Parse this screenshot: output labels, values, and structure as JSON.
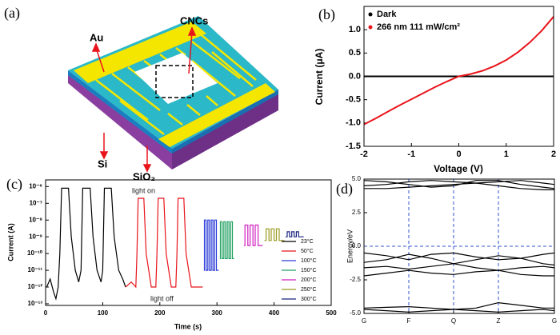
{
  "diagram": {
    "panel_label": "(a)",
    "labels": [
      "Au",
      "CNCs",
      "Si",
      "SiO₂"
    ]
  },
  "chart_data": [
    {
      "type": "line",
      "panel_label": "(b)",
      "xlabel": "Voltage (V)",
      "ylabel": "Current (μA)",
      "xlim": [
        -2,
        2
      ],
      "xticks": [
        -2,
        -1,
        0,
        1,
        2
      ],
      "ylim": [
        -1.5,
        1.5
      ],
      "yticks": [
        {
          "value": -1.5,
          "label": "-1.5"
        },
        {
          "value": -1.0,
          "label": "-1.0"
        },
        {
          "value": -0.5,
          "label": "-0.5"
        },
        {
          "value": 0.0,
          "label": "0.0"
        },
        {
          "value": 0.5,
          "label": "0.5"
        },
        {
          "value": 1.0,
          "label": "1.0"
        }
      ],
      "legend": "upper left",
      "legend_marker": "dot",
      "x": [
        -2,
        -1.75,
        -1.5,
        -1.25,
        -1,
        -0.75,
        -0.5,
        -0.25,
        0,
        0.25,
        0.5,
        0.75,
        1,
        1.25,
        1.5,
        1.75,
        2
      ],
      "series": [
        {
          "name": "Dark",
          "color": "#000000",
          "values": [
            0,
            0,
            0,
            0,
            0,
            0,
            0,
            0,
            0,
            0,
            0,
            0,
            0,
            0,
            0,
            0,
            0
          ]
        },
        {
          "name": "266 nm 111 mW/cm²",
          "color": "#e8141b",
          "values": [
            -1.03,
            -0.9,
            -0.76,
            -0.62,
            -0.49,
            -0.36,
            -0.23,
            -0.11,
            0.0,
            0.05,
            0.12,
            0.22,
            0.35,
            0.52,
            0.73,
            0.98,
            1.28
          ]
        }
      ]
    },
    {
      "type": "line",
      "panel_label": "(c)",
      "xlabel": "Time (s)",
      "ylabel": "Current (A)",
      "log_y": true,
      "xlim": [
        0,
        500
      ],
      "xticks": [
        0,
        100,
        200,
        300,
        400,
        500
      ],
      "ylim": [
        8e-14,
        2.5e-06
      ],
      "yticks": [
        {
          "value": 1e-13,
          "label": "10⁻¹³"
        },
        {
          "value": 1e-12,
          "label": "10⁻¹²"
        },
        {
          "value": 1e-11,
          "label": "10⁻¹¹"
        },
        {
          "value": 1e-10,
          "label": "10⁻¹⁰"
        },
        {
          "value": 1e-09,
          "label": "10⁻⁹"
        },
        {
          "value": 1e-08,
          "label": "10⁻⁸"
        },
        {
          "value": 1e-07,
          "label": "10⁻⁷"
        },
        {
          "value": 1e-06,
          "label": "10⁻⁶"
        }
      ],
      "legend": "lower right",
      "legend_marker": "line",
      "annotations": [
        "light on",
        "light off"
      ],
      "series": [
        {
          "name": "23°C",
          "color": "#000000",
          "x": [
            2,
            8,
            14,
            18,
            22,
            25,
            28,
            40,
            45,
            52,
            58,
            62,
            65,
            78,
            83,
            90,
            97,
            100,
            103,
            115,
            120,
            128,
            135,
            140
          ],
          "values": [
            1e-12,
            3e-12,
            5e-13,
            2e-13,
            1e-12,
            1e-10,
            8e-07,
            8e-07,
            1e-09,
            1e-11,
            2e-12,
            1e-11,
            8e-07,
            8e-07,
            1e-09,
            1e-11,
            2e-12,
            1e-11,
            8e-07,
            8e-07,
            1e-09,
            1e-11,
            3e-12,
            1e-12
          ]
        },
        {
          "name": "50°C",
          "color": "#e8141b",
          "x": [
            140,
            150,
            158,
            160,
            162,
            172,
            176,
            185,
            193,
            195,
            197,
            207,
            211,
            220,
            228,
            230,
            232,
            242,
            246,
            255,
            265,
            275
          ],
          "values": [
            1e-12,
            2e-12,
            1e-12,
            1e-10,
            2e-07,
            2e-07,
            1e-10,
            1e-12,
            1e-12,
            1e-10,
            2e-07,
            2e-07,
            1e-10,
            1e-12,
            1e-12,
            1e-10,
            2e-07,
            2e-07,
            1e-10,
            1e-12,
            1e-12,
            1e-12
          ]
        },
        {
          "name": "100°C",
          "color": "#2a3bd6",
          "x": [
            277,
            278,
            278,
            281,
            281,
            284,
            284,
            287,
            287,
            290,
            290,
            293,
            293,
            296,
            296,
            299,
            299,
            303
          ],
          "values": [
            1e-11,
            1e-11,
            1e-08,
            1e-08,
            1e-11,
            1e-11,
            1e-08,
            1e-08,
            1e-11,
            1e-11,
            1e-08,
            1e-08,
            1e-11,
            1e-11,
            1e-08,
            1e-08,
            1e-11,
            1e-11
          ]
        },
        {
          "name": "150°C",
          "color": "#20a060",
          "x": [
            305,
            306,
            306,
            309,
            309,
            312,
            312,
            315,
            315,
            318,
            318,
            321,
            321,
            324,
            324,
            327,
            327,
            330
          ],
          "values": [
            5e-11,
            5e-11,
            8e-09,
            8e-09,
            5e-11,
            5e-11,
            8e-09,
            8e-09,
            5e-11,
            5e-11,
            8e-09,
            8e-09,
            5e-11,
            5e-11,
            8e-09,
            8e-09,
            5e-11,
            5e-11
          ]
        },
        {
          "name": "200°C",
          "color": "#d020c0",
          "x": [
            347,
            349,
            349,
            354,
            354,
            358,
            358,
            363,
            363,
            367,
            367,
            372,
            372,
            380
          ],
          "values": [
            3e-10,
            3e-10,
            5e-09,
            5e-09,
            3e-10,
            3e-10,
            5e-09,
            5e-09,
            3e-10,
            3e-10,
            5e-09,
            5e-09,
            3e-10,
            3e-10
          ]
        },
        {
          "name": "250°C",
          "color": "#9a9a20",
          "x": [
            383,
            386,
            386,
            391,
            391,
            395,
            395,
            400,
            400,
            404,
            404,
            409,
            409,
            418
          ],
          "values": [
            6e-10,
            6e-10,
            3e-09,
            3e-09,
            6e-10,
            6e-10,
            3e-09,
            3e-09,
            6e-10,
            6e-10,
            3e-09,
            3e-09,
            6e-10,
            6e-10
          ]
        },
        {
          "name": "300°C",
          "color": "#1a237e",
          "x": [
            420,
            423,
            423,
            427,
            427,
            431,
            431,
            435,
            435,
            439,
            439,
            443,
            443,
            452
          ],
          "values": [
            1e-09,
            1e-09,
            2e-09,
            2e-09,
            1e-09,
            1e-09,
            2e-09,
            2e-09,
            1e-09,
            1e-09,
            2e-09,
            2e-09,
            1e-09,
            1e-09
          ]
        }
      ]
    },
    {
      "type": "line",
      "panel_label": "(d)",
      "ylabel": "Energy/eV",
      "xlim": [
        0,
        4.25
      ],
      "xticks": [
        {
          "value": 0,
          "label": "G"
        },
        {
          "value": 1,
          "label": "F"
        },
        {
          "value": 2,
          "label": "Q"
        },
        {
          "value": 3,
          "label": "Z"
        },
        {
          "value": 4.25,
          "label": "G"
        }
      ],
      "ylim": [
        -5,
        5
      ],
      "yticks": [
        {
          "value": -5,
          "label": "-5.0"
        },
        {
          "value": -2.5,
          "label": "-2.5"
        },
        {
          "value": 0,
          "label": "0.0"
        },
        {
          "value": 2.5,
          "label": "2.5"
        },
        {
          "value": 5,
          "label": "5.0"
        }
      ],
      "guides": true,
      "guide_color": "#3355cc",
      "x": [
        0,
        0.5,
        1,
        1.5,
        2,
        2.5,
        3,
        3.5,
        4,
        4.25
      ],
      "series": [
        {
          "color": "#000000",
          "values": [
            4.3,
            4.3,
            4.4,
            4.5,
            4.6,
            4.7,
            4.5,
            4.3,
            4.2,
            4.2
          ]
        },
        {
          "color": "#000000",
          "values": [
            4.5,
            4.6,
            4.8,
            4.9,
            4.8,
            4.7,
            4.8,
            4.9,
            4.7,
            4.6
          ]
        },
        {
          "color": "#000000",
          "values": [
            4.9,
            4.8,
            4.6,
            4.4,
            4.5,
            4.9,
            4.9,
            4.6,
            4.4,
            4.3
          ]
        },
        {
          "color": "#000000",
          "values": [
            -0.5,
            -0.7,
            -1.0,
            -0.6,
            -0.5,
            -0.8,
            -1.0,
            -0.9,
            -0.6,
            -0.5
          ]
        },
        {
          "color": "#000000",
          "values": [
            -1.2,
            -1.0,
            -0.6,
            -0.9,
            -1.3,
            -1.0,
            -0.7,
            -0.9,
            -1.3,
            -1.4
          ]
        },
        {
          "color": "#000000",
          "values": [
            -1.6,
            -1.5,
            -1.7,
            -1.5,
            -1.3,
            -1.6,
            -1.8,
            -1.6,
            -1.5,
            -1.6
          ]
        },
        {
          "color": "#000000",
          "values": [
            -2.2,
            -2.0,
            -1.8,
            -2.0,
            -2.1,
            -1.9,
            -1.8,
            -2.1,
            -2.2,
            -2.2
          ]
        },
        {
          "color": "#000000",
          "values": [
            -4.6,
            -4.55,
            -4.5,
            -4.6,
            -4.7,
            -4.6,
            -4.2,
            -4.4,
            -4.6,
            -4.6
          ]
        },
        {
          "color": "#000000",
          "values": [
            -4.7,
            -4.8,
            -4.9,
            -4.8,
            -4.7,
            -4.8,
            -4.9,
            -4.8,
            -4.7,
            -4.8
          ]
        }
      ]
    }
  ]
}
